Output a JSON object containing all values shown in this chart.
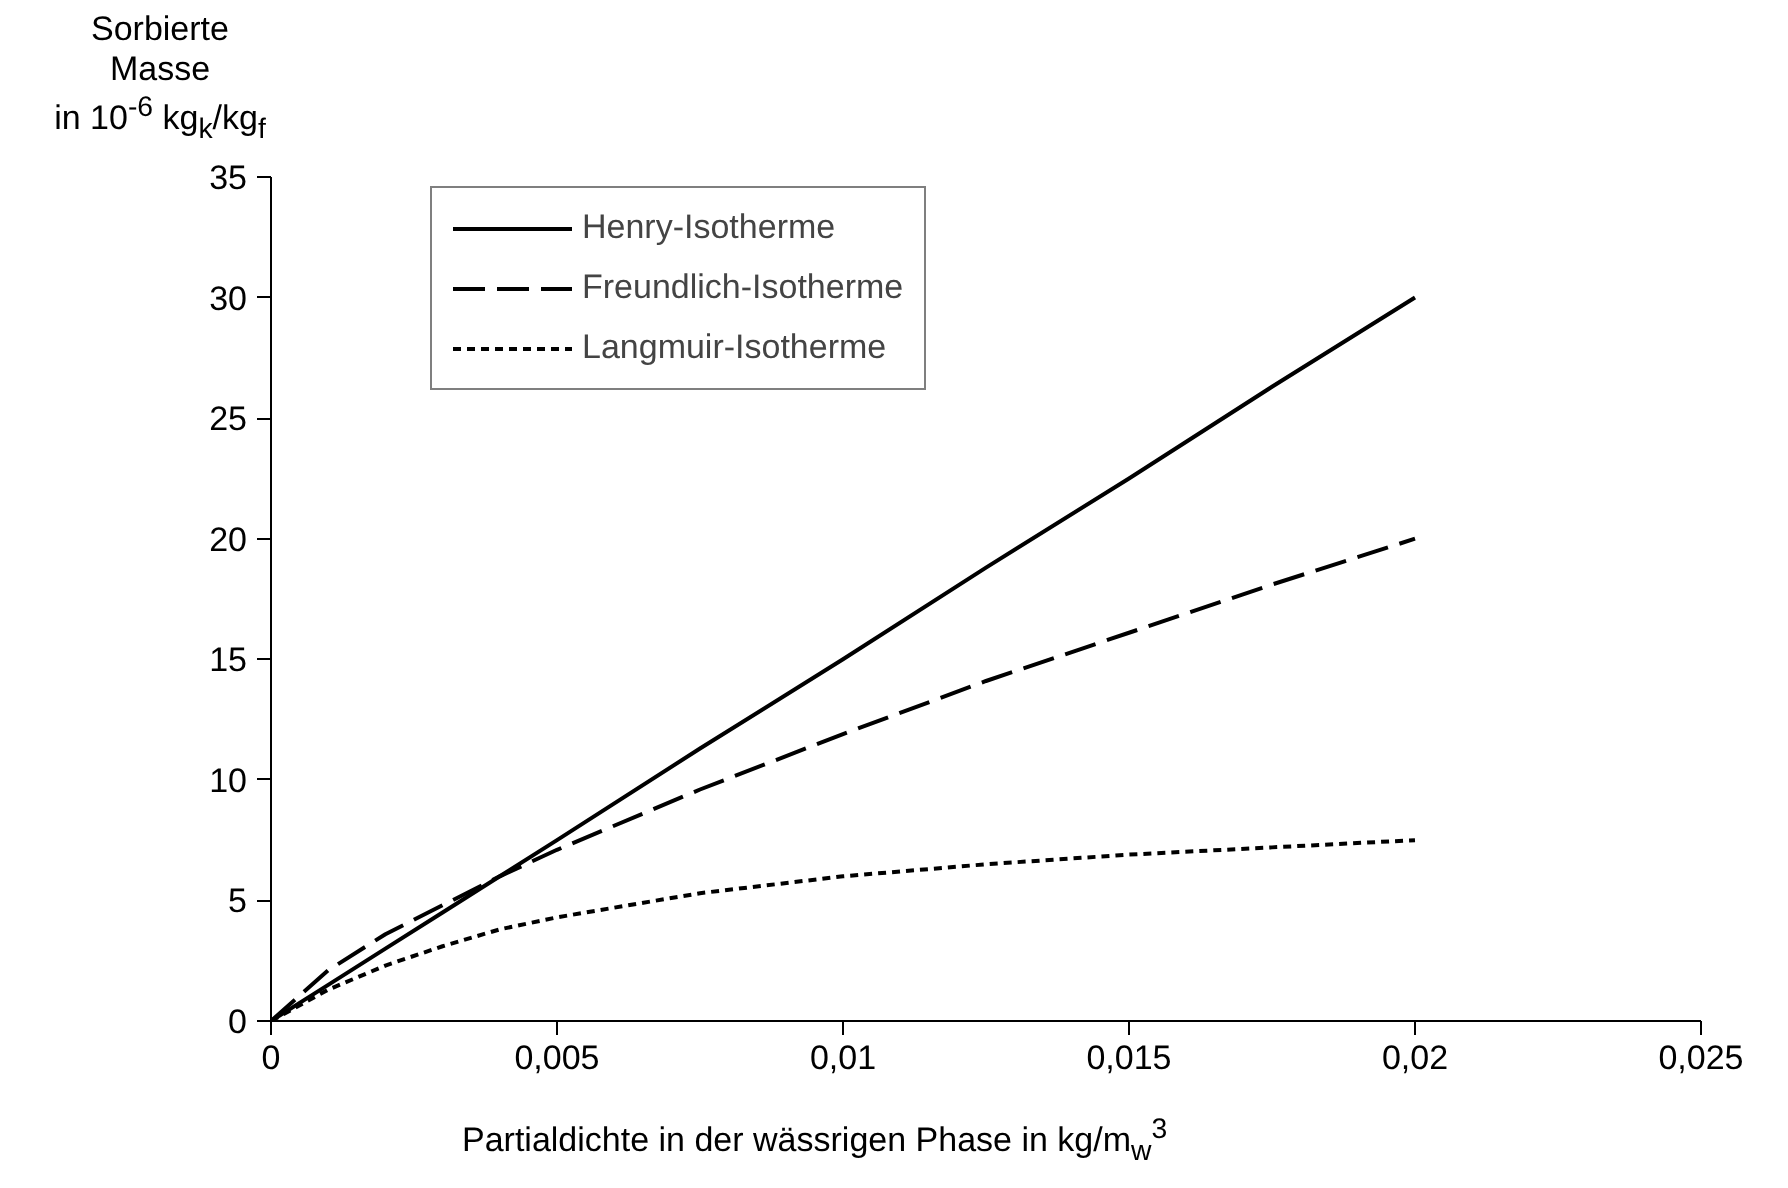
{
  "chart_data": {
    "type": "line",
    "ylabel": "Sorbierte\nMasse\nin 10$^{-6}$ kg$_{k}$/kg$_{f}$",
    "xlabel": "Partialdichte in der wässrigen Phase in kg/m$_{w}$$^{3}$",
    "x": [
      0,
      0.001,
      0.002,
      0.003,
      0.004,
      0.005,
      0.0075,
      0.01,
      0.0125,
      0.015,
      0.0175,
      0.02
    ],
    "series": [
      {
        "name": "Henry-Isotherme",
        "color": "#000000",
        "line_style": "solid",
        "values": [
          0,
          1.5,
          3,
          4.5,
          6,
          7.5,
          11.3,
          15,
          18.8,
          22.5,
          26.3,
          30
        ]
      },
      {
        "name": "Freundlich-Isotherme",
        "color": "#000000",
        "line_style": "dashed",
        "values": [
          0,
          2.1,
          3.6,
          4.8,
          6,
          7.1,
          9.6,
          11.9,
          14.1,
          16.1,
          18.1,
          20
        ]
      },
      {
        "name": "Langmuir-Isotherme",
        "color": "#000000",
        "line_style": "dotted",
        "values": [
          0,
          1.3,
          2.3,
          3.1,
          3.8,
          4.3,
          5.3,
          6,
          6.5,
          6.9,
          7.2,
          7.5
        ]
      }
    ],
    "xlim": [
      0,
      0.025
    ],
    "xticks": [
      0,
      {
        "value": 0.005,
        "label": "0,005"
      },
      {
        "value": 0.01,
        "label": "0,01"
      },
      {
        "value": 0.015,
        "label": "0,015"
      },
      {
        "value": 0.02,
        "label": "0,02"
      },
      {
        "value": 0.025,
        "label": "0,025"
      }
    ],
    "ylim": [
      0,
      35
    ],
    "yticks": [
      0,
      5,
      10,
      15,
      20,
      25,
      30,
      35
    ],
    "grid": false,
    "legend": "top left",
    "marker": "none"
  }
}
